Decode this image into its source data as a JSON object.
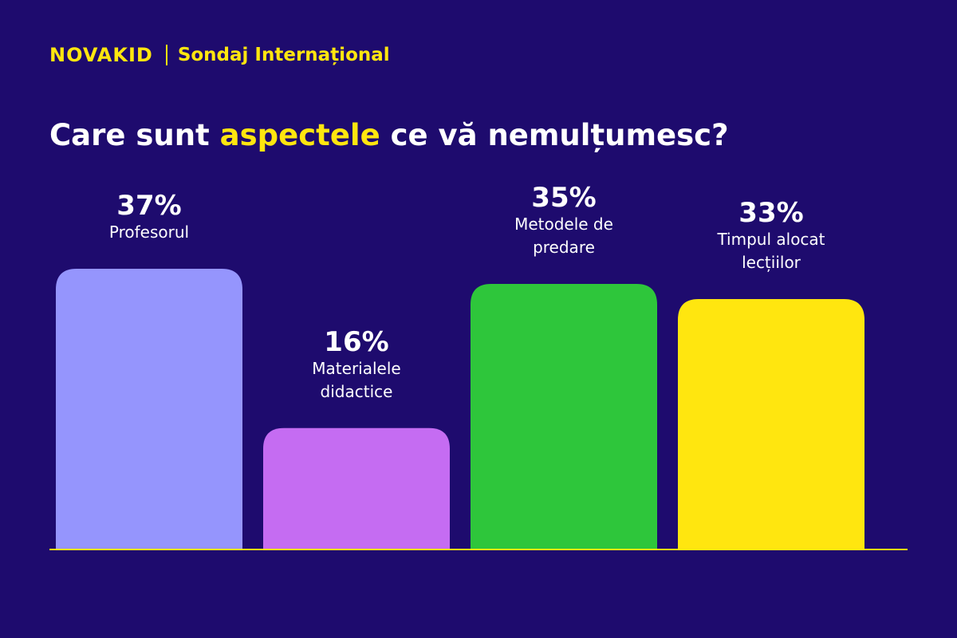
{
  "header": {
    "logo": "NOVAKID",
    "survey": "Sondaj Internațional"
  },
  "title": {
    "prefix": "Care sunt ",
    "highlight": "aspectele",
    "suffix": " ce vă nemulțumesc?"
  },
  "colors": {
    "background": "#1e0b6e",
    "accent": "#ffe60f",
    "text": "#ffffff"
  },
  "chart_data": {
    "type": "bar",
    "categories": [
      [
        "Profesorul"
      ],
      [
        "Materialele",
        "didactice"
      ],
      [
        "Metodele de",
        "predare"
      ],
      [
        "Timpul alocat",
        "lecțiilor"
      ]
    ],
    "values": [
      37,
      16,
      35,
      33
    ],
    "value_labels": [
      "37%",
      "16%",
      "35%",
      "33%"
    ],
    "bar_colors": [
      "#9595fd",
      "#c56cf2",
      "#2ec63b",
      "#ffe60f"
    ],
    "ylim": [
      0,
      37
    ],
    "grid": false,
    "legend": "none"
  }
}
